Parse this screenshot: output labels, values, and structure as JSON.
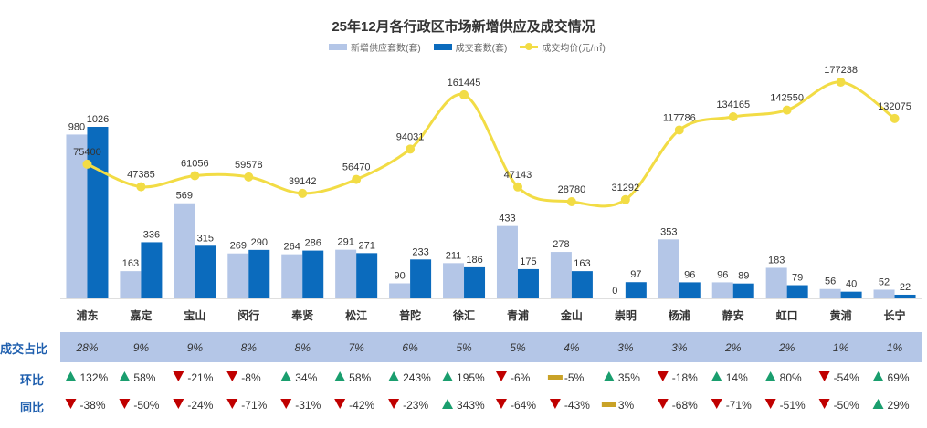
{
  "chart_data": {
    "type": "bar+line",
    "title": "25年12月各行政区市场新增供应及成交情况",
    "categories": [
      "浦东",
      "嘉定",
      "宝山",
      "闵行",
      "奉贤",
      "松江",
      "普陀",
      "徐汇",
      "青浦",
      "金山",
      "崇明",
      "杨浦",
      "静安",
      "虹口",
      "黄浦",
      "长宁"
    ],
    "series": [
      {
        "name": "新增供应套数(套)",
        "type": "bar",
        "color": "#b4c6e7",
        "values": [
          980,
          163,
          569,
          269,
          264,
          291,
          90,
          211,
          433,
          278,
          0,
          353,
          96,
          183,
          56,
          52
        ]
      },
      {
        "name": "成交套数(套)",
        "type": "bar",
        "color": "#0b6bbd",
        "values": [
          1026,
          336,
          315,
          290,
          286,
          271,
          233,
          186,
          175,
          163,
          97,
          96,
          89,
          79,
          40,
          22
        ]
      },
      {
        "name": "成交均价(元/㎡)",
        "type": "line",
        "color": "#f2dc45",
        "values": [
          75400,
          47385,
          61056,
          59578,
          39142,
          56470,
          94031,
          161445,
          47143,
          28780,
          31292,
          117786,
          134165,
          142550,
          177238,
          132075
        ]
      }
    ],
    "price_labels": [
      "75400",
      "47385",
      "61056",
      "59578",
      "39142",
      "56470",
      "94031",
      "161445",
      "47143",
      "28780",
      "31292",
      "117786",
      "134165",
      "142550",
      "177238",
      "132075"
    ],
    "legend_position": "top-center",
    "share_row": {
      "label": "成交占比",
      "values": [
        "28%",
        "9%",
        "9%",
        "8%",
        "8%",
        "7%",
        "6%",
        "5%",
        "5%",
        "4%",
        "3%",
        "3%",
        "2%",
        "2%",
        "1%",
        "1%"
      ]
    },
    "mom_row": {
      "label": "环比",
      "values": [
        "132%",
        "58%",
        "-21%",
        "-8%",
        "34%",
        "58%",
        "243%",
        "195%",
        "-6%",
        "-5%",
        "35%",
        "-18%",
        "14%",
        "80%",
        "-54%",
        "69%"
      ],
      "directions": [
        "up",
        "up",
        "down",
        "down",
        "up",
        "up",
        "up",
        "up",
        "down",
        "flat",
        "up",
        "down",
        "up",
        "up",
        "down",
        "up"
      ]
    },
    "yoy_row": {
      "label": "同比",
      "values": [
        "-38%",
        "-50%",
        "-24%",
        "-71%",
        "-31%",
        "-42%",
        "-23%",
        "343%",
        "-64%",
        "-43%",
        "3%",
        "-68%",
        "-71%",
        "-51%",
        "-50%",
        "29%"
      ],
      "directions": [
        "down",
        "down",
        "down",
        "down",
        "down",
        "down",
        "down",
        "up",
        "down",
        "down",
        "flat",
        "down",
        "down",
        "down",
        "down",
        "up"
      ]
    },
    "indicator_colors": {
      "up": "#1a9e6e",
      "down": "#c00000",
      "flat": "#c9a227"
    }
  }
}
